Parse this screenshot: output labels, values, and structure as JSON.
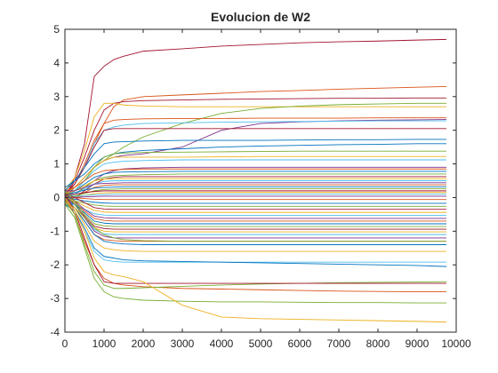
{
  "chart_data": {
    "type": "line",
    "title": "Evolucion de W2",
    "xlabel": "",
    "ylabel": "",
    "xlim": [
      0,
      10000
    ],
    "ylim": [
      -4,
      5
    ],
    "x_ticks": [
      "0",
      "1000",
      "2000",
      "3000",
      "4000",
      "5000",
      "6000",
      "7000",
      "8000",
      "9000",
      "10000"
    ],
    "y_ticks": [
      "5",
      "4",
      "3",
      "2",
      "1",
      "0",
      "-1",
      "-2",
      "-3",
      "-4"
    ],
    "grid": false,
    "legend": "none",
    "colors": [
      "#0072BD",
      "#D95319",
      "#EDB120",
      "#7E2F8E",
      "#77AC30",
      "#4DBEEE",
      "#A2142F"
    ],
    "sample_x": [
      0,
      250,
      500,
      750,
      1000,
      1250,
      1500,
      2000,
      3000,
      4000,
      5000,
      6000,
      7000,
      8000,
      9000,
      9750
    ],
    "series": [
      {
        "color": "#A2142F",
        "values": [
          0.0,
          0.6,
          1.6,
          3.6,
          3.9,
          4.1,
          4.2,
          4.35,
          4.42,
          4.5,
          4.55,
          4.6,
          4.63,
          4.65,
          4.68,
          4.7
        ]
      },
      {
        "color": "#D95319",
        "values": [
          0.1,
          0.4,
          0.9,
          1.6,
          2.2,
          2.7,
          2.9,
          3.0,
          3.05,
          3.1,
          3.15,
          3.18,
          3.22,
          3.25,
          3.28,
          3.3
        ]
      },
      {
        "color": "#A2142F",
        "values": [
          0.0,
          0.5,
          1.2,
          2.0,
          2.6,
          2.8,
          2.85,
          2.88,
          2.9,
          2.92,
          2.93,
          2.94,
          2.95,
          2.95,
          2.96,
          2.96
        ]
      },
      {
        "color": "#EDB120",
        "values": [
          0.2,
          0.6,
          1.4,
          2.4,
          2.8,
          2.8,
          2.75,
          2.72,
          2.7,
          2.7,
          2.7,
          2.7,
          2.7,
          2.7,
          2.7,
          2.7
        ]
      },
      {
        "color": "#77AC30",
        "values": [
          0.1,
          0.3,
          0.6,
          0.9,
          1.1,
          1.3,
          1.5,
          1.8,
          2.2,
          2.5,
          2.65,
          2.72,
          2.76,
          2.78,
          2.8,
          2.8
        ]
      },
      {
        "color": "#7E2F8E",
        "values": [
          0.0,
          0.3,
          0.6,
          0.9,
          1.1,
          1.2,
          1.25,
          1.3,
          1.5,
          2.0,
          2.2,
          2.25,
          2.28,
          2.3,
          2.31,
          2.32
        ]
      },
      {
        "color": "#4DBEEE",
        "values": [
          0.1,
          0.4,
          0.9,
          1.6,
          2.0,
          2.1,
          2.15,
          2.2,
          2.22,
          2.24,
          2.25,
          2.26,
          2.27,
          2.28,
          2.28,
          2.28
        ]
      },
      {
        "color": "#D95319",
        "values": [
          0.0,
          0.4,
          1.0,
          1.7,
          2.2,
          2.3,
          2.32,
          2.34,
          2.35,
          2.35,
          2.36,
          2.36,
          2.36,
          2.37,
          2.37,
          2.37
        ]
      },
      {
        "color": "#A2142F",
        "values": [
          0.1,
          0.4,
          0.9,
          1.5,
          2.0,
          2.05,
          2.05,
          2.05,
          2.05,
          2.05,
          2.05,
          2.05,
          2.05,
          2.05,
          2.05,
          2.05
        ]
      },
      {
        "color": "#0072BD",
        "values": [
          0.2,
          0.5,
          0.9,
          1.3,
          1.6,
          1.65,
          1.66,
          1.68,
          1.7,
          1.7,
          1.7,
          1.71,
          1.72,
          1.72,
          1.73,
          1.73
        ]
      },
      {
        "color": "#0072BD",
        "values": [
          0.3,
          0.5,
          0.7,
          1.0,
          1.2,
          1.3,
          1.35,
          1.4,
          1.45,
          1.5,
          1.53,
          1.55,
          1.57,
          1.58,
          1.6,
          1.6
        ]
      },
      {
        "color": "#EDB120",
        "values": [
          0.1,
          0.3,
          0.6,
          0.9,
          1.1,
          1.2,
          1.2,
          1.2,
          1.2,
          1.21,
          1.22,
          1.22,
          1.22,
          1.22,
          1.22,
          1.22
        ]
      },
      {
        "color": "#77AC30",
        "values": [
          -0.1,
          0.2,
          0.5,
          0.9,
          1.2,
          1.3,
          1.32,
          1.34,
          1.35,
          1.36,
          1.37,
          1.38,
          1.38,
          1.38,
          1.38,
          1.38
        ]
      },
      {
        "color": "#4DBEEE",
        "values": [
          0.0,
          0.2,
          0.5,
          0.8,
          1.0,
          1.05,
          1.08,
          1.1,
          1.12,
          1.12,
          1.12,
          1.12,
          1.12,
          1.12,
          1.12,
          1.12
        ]
      },
      {
        "color": "#7E2F8E",
        "values": [
          0.0,
          0.1,
          0.3,
          0.5,
          0.7,
          0.8,
          0.85,
          0.88,
          0.9,
          0.9,
          0.9,
          0.9,
          0.9,
          0.9,
          0.9,
          0.9
        ]
      },
      {
        "color": "#D95319",
        "values": [
          0.2,
          0.3,
          0.5,
          0.7,
          0.8,
          0.82,
          0.84,
          0.85,
          0.85,
          0.85,
          0.85,
          0.85,
          0.85,
          0.85,
          0.85,
          0.85
        ]
      },
      {
        "color": "#0072BD",
        "values": [
          0.1,
          0.2,
          0.4,
          0.6,
          0.7,
          0.75,
          0.76,
          0.77,
          0.78,
          0.78,
          0.78,
          0.78,
          0.78,
          0.78,
          0.78,
          0.78
        ]
      },
      {
        "color": "#77AC30",
        "values": [
          0.0,
          0.1,
          0.3,
          0.5,
          0.6,
          0.65,
          0.66,
          0.68,
          0.7,
          0.7,
          0.7,
          0.7,
          0.7,
          0.7,
          0.7,
          0.7
        ]
      },
      {
        "color": "#A2142F",
        "values": [
          -0.1,
          0.0,
          0.2,
          0.4,
          0.55,
          0.6,
          0.62,
          0.62,
          0.62,
          0.62,
          0.62,
          0.62,
          0.62,
          0.62,
          0.62,
          0.62
        ]
      },
      {
        "color": "#EDB120",
        "values": [
          0.1,
          0.2,
          0.35,
          0.5,
          0.55,
          0.56,
          0.56,
          0.56,
          0.56,
          0.56,
          0.56,
          0.56,
          0.56,
          0.56,
          0.56,
          0.56
        ]
      },
      {
        "color": "#4DBEEE",
        "values": [
          0.0,
          0.1,
          0.25,
          0.4,
          0.48,
          0.5,
          0.5,
          0.5,
          0.5,
          0.5,
          0.5,
          0.5,
          0.5,
          0.5,
          0.5,
          0.5
        ]
      },
      {
        "color": "#7E2F8E",
        "values": [
          0.2,
          0.2,
          0.3,
          0.4,
          0.42,
          0.43,
          0.44,
          0.44,
          0.44,
          0.44,
          0.44,
          0.44,
          0.44,
          0.44,
          0.44,
          0.44
        ]
      },
      {
        "color": "#D95319",
        "values": [
          -0.2,
          0.0,
          0.15,
          0.3,
          0.36,
          0.38,
          0.38,
          0.38,
          0.38,
          0.38,
          0.38,
          0.38,
          0.38,
          0.38,
          0.38,
          0.38
        ]
      },
      {
        "color": "#0072BD",
        "values": [
          0.1,
          0.15,
          0.22,
          0.28,
          0.3,
          0.31,
          0.32,
          0.32,
          0.32,
          0.32,
          0.32,
          0.32,
          0.32,
          0.32,
          0.32,
          0.32
        ]
      },
      {
        "color": "#77AC30",
        "values": [
          0.0,
          0.05,
          0.12,
          0.2,
          0.24,
          0.25,
          0.26,
          0.26,
          0.26,
          0.26,
          0.26,
          0.26,
          0.26,
          0.26,
          0.26,
          0.26
        ]
      },
      {
        "color": "#A2142F",
        "values": [
          0.1,
          0.1,
          0.15,
          0.18,
          0.2,
          0.2,
          0.2,
          0.2,
          0.2,
          0.2,
          0.2,
          0.2,
          0.2,
          0.2,
          0.2,
          0.2
        ]
      },
      {
        "color": "#EDB120",
        "values": [
          -0.1,
          0.0,
          0.06,
          0.12,
          0.14,
          0.15,
          0.15,
          0.15,
          0.15,
          0.15,
          0.15,
          0.15,
          0.15,
          0.15,
          0.15,
          0.15
        ]
      },
      {
        "color": "#4DBEEE",
        "values": [
          0.0,
          0.03,
          0.06,
          0.08,
          0.09,
          0.1,
          0.1,
          0.1,
          0.1,
          0.1,
          0.1,
          0.1,
          0.1,
          0.1,
          0.1,
          0.1
        ]
      },
      {
        "color": "#7E2F8E",
        "values": [
          0.0,
          0.0,
          0.02,
          0.03,
          0.04,
          0.04,
          0.04,
          0.04,
          0.04,
          0.04,
          0.04,
          0.04,
          0.04,
          0.04,
          0.04,
          0.04
        ]
      },
      {
        "color": "#D95319",
        "values": [
          0.1,
          0.0,
          -0.03,
          -0.05,
          -0.06,
          -0.06,
          -0.06,
          -0.06,
          -0.06,
          -0.06,
          -0.06,
          -0.06,
          -0.06,
          -0.06,
          -0.06,
          -0.06
        ]
      },
      {
        "color": "#0072BD",
        "values": [
          0.0,
          -0.05,
          -0.1,
          -0.14,
          -0.16,
          -0.17,
          -0.17,
          -0.17,
          -0.17,
          -0.17,
          -0.17,
          -0.17,
          -0.17,
          -0.17,
          -0.17,
          -0.17
        ]
      },
      {
        "color": "#77AC30",
        "values": [
          -0.1,
          -0.1,
          -0.16,
          -0.22,
          -0.25,
          -0.26,
          -0.26,
          -0.26,
          -0.26,
          -0.26,
          -0.26,
          -0.26,
          -0.26,
          -0.26,
          -0.26,
          -0.26
        ]
      },
      {
        "color": "#A2142F",
        "values": [
          0.1,
          0.0,
          -0.15,
          -0.3,
          -0.34,
          -0.35,
          -0.35,
          -0.35,
          -0.35,
          -0.35,
          -0.35,
          -0.35,
          -0.35,
          -0.35,
          -0.35,
          -0.35
        ]
      },
      {
        "color": "#EDB120",
        "values": [
          0.0,
          -0.1,
          -0.25,
          -0.38,
          -0.43,
          -0.44,
          -0.44,
          -0.44,
          -0.44,
          -0.44,
          -0.44,
          -0.44,
          -0.44,
          -0.44,
          -0.44,
          -0.44
        ]
      },
      {
        "color": "#4DBEEE",
        "values": [
          -0.2,
          -0.2,
          -0.35,
          -0.48,
          -0.52,
          -0.53,
          -0.53,
          -0.53,
          -0.53,
          -0.53,
          -0.53,
          -0.53,
          -0.53,
          -0.53,
          -0.53,
          -0.53
        ]
      },
      {
        "color": "#7E2F8E",
        "values": [
          0.1,
          -0.1,
          -0.35,
          -0.55,
          -0.6,
          -0.61,
          -0.62,
          -0.62,
          -0.62,
          -0.62,
          -0.62,
          -0.62,
          -0.62,
          -0.62,
          -0.62,
          -0.62
        ]
      },
      {
        "color": "#D95319",
        "values": [
          0.0,
          -0.15,
          -0.4,
          -0.62,
          -0.68,
          -0.7,
          -0.7,
          -0.7,
          -0.7,
          -0.7,
          -0.7,
          -0.7,
          -0.7,
          -0.7,
          -0.7,
          -0.7
        ]
      },
      {
        "color": "#0072BD",
        "values": [
          -0.1,
          -0.2,
          -0.45,
          -0.7,
          -0.76,
          -0.78,
          -0.78,
          -0.78,
          -0.78,
          -0.78,
          -0.78,
          -0.78,
          -0.78,
          -0.78,
          -0.78,
          -0.78
        ]
      },
      {
        "color": "#77AC30",
        "values": [
          0.2,
          -0.1,
          -0.5,
          -0.78,
          -0.84,
          -0.86,
          -0.86,
          -0.86,
          -0.86,
          -0.86,
          -0.86,
          -0.86,
          -0.86,
          -0.86,
          -0.86,
          -0.86
        ]
      },
      {
        "color": "#A2142F",
        "values": [
          0.0,
          -0.2,
          -0.55,
          -0.85,
          -0.92,
          -0.94,
          -0.94,
          -0.94,
          -0.94,
          -0.94,
          -0.94,
          -0.94,
          -0.94,
          -0.94,
          -0.94,
          -0.94
        ]
      },
      {
        "color": "#EDB120",
        "values": [
          -0.2,
          -0.3,
          -0.6,
          -0.9,
          -1.0,
          -1.02,
          -1.02,
          -1.02,
          -1.02,
          -1.02,
          -1.02,
          -1.02,
          -1.02,
          -1.02,
          -1.02,
          -1.02
        ]
      },
      {
        "color": "#4DBEEE",
        "values": [
          0.1,
          -0.2,
          -0.6,
          -0.95,
          -1.08,
          -1.1,
          -1.1,
          -1.1,
          -1.1,
          -1.1,
          -1.1,
          -1.1,
          -1.1,
          -1.1,
          -1.1,
          -1.1
        ]
      },
      {
        "color": "#7E2F8E",
        "values": [
          0.0,
          -0.2,
          -0.6,
          -1.0,
          -1.15,
          -1.2,
          -1.2,
          -1.2,
          -1.2,
          -1.2,
          -1.2,
          -1.2,
          -1.2,
          -1.2,
          -1.2,
          -1.2
        ]
      },
      {
        "color": "#D95319",
        "values": [
          -0.1,
          -0.3,
          -0.7,
          -1.1,
          -1.25,
          -1.28,
          -1.3,
          -1.3,
          -1.3,
          -1.3,
          -1.3,
          -1.3,
          -1.3,
          -1.3,
          -1.3,
          -1.3
        ]
      },
      {
        "color": "#0072BD",
        "values": [
          0.0,
          -0.3,
          -0.7,
          -1.1,
          -1.3,
          -1.35,
          -1.38,
          -1.4,
          -1.4,
          -1.4,
          -1.4,
          -1.4,
          -1.4,
          -1.4,
          -1.4,
          -1.4
        ]
      },
      {
        "color": "#77AC30",
        "values": [
          0.1,
          -0.2,
          -0.6,
          -0.9,
          -1.1,
          -1.2,
          -1.25,
          -1.28,
          -1.3,
          -1.3,
          -1.3,
          -1.3,
          -1.3,
          -1.3,
          -1.3,
          -1.3
        ]
      },
      {
        "color": "#EDB120",
        "values": [
          -0.1,
          -0.3,
          -0.8,
          -1.3,
          -1.5,
          -1.55,
          -1.58,
          -1.6,
          -1.6,
          -1.6,
          -1.6,
          -1.6,
          -1.6,
          -1.6,
          -1.6,
          -1.6
        ]
      },
      {
        "color": "#4DBEEE",
        "values": [
          0.0,
          -0.4,
          -1.0,
          -1.6,
          -1.85,
          -1.9,
          -1.92,
          -1.92,
          -1.92,
          -1.92,
          -1.92,
          -1.92,
          -1.92,
          -1.92,
          -1.92,
          -1.92
        ]
      },
      {
        "color": "#0072BD",
        "values": [
          -0.2,
          -0.4,
          -0.9,
          -1.5,
          -1.75,
          -1.8,
          -1.85,
          -1.88,
          -1.9,
          -1.92,
          -1.94,
          -1.96,
          -1.98,
          -2.0,
          -2.02,
          -2.05
        ]
      },
      {
        "color": "#D95319",
        "values": [
          0.0,
          -0.5,
          -1.3,
          -2.0,
          -2.4,
          -2.55,
          -2.6,
          -2.65,
          -2.7,
          -2.72,
          -2.74,
          -2.76,
          -2.78,
          -2.79,
          -2.8,
          -2.8
        ]
      },
      {
        "color": "#77AC30",
        "values": [
          -0.1,
          -0.5,
          -1.4,
          -2.2,
          -2.6,
          -2.7,
          -2.7,
          -2.68,
          -2.64,
          -2.6,
          -2.57,
          -2.55,
          -2.53,
          -2.52,
          -2.51,
          -2.5
        ]
      },
      {
        "color": "#A2142F",
        "values": [
          0.1,
          -0.4,
          -1.2,
          -2.0,
          -2.5,
          -2.55,
          -2.55,
          -2.55,
          -2.55,
          -2.55,
          -2.55,
          -2.55,
          -2.55,
          -2.55,
          -2.55,
          -2.55
        ]
      },
      {
        "color": "#77AC30",
        "values": [
          -0.2,
          -0.6,
          -1.5,
          -2.4,
          -2.8,
          -2.95,
          -3.0,
          -3.05,
          -3.08,
          -3.1,
          -3.1,
          -3.11,
          -3.12,
          -3.12,
          -3.13,
          -3.13
        ]
      },
      {
        "color": "#EDB120",
        "values": [
          0.0,
          -0.4,
          -1.0,
          -1.8,
          -2.2,
          -2.3,
          -2.35,
          -2.5,
          -3.2,
          -3.55,
          -3.6,
          -3.62,
          -3.64,
          -3.66,
          -3.68,
          -3.7
        ]
      }
    ]
  }
}
